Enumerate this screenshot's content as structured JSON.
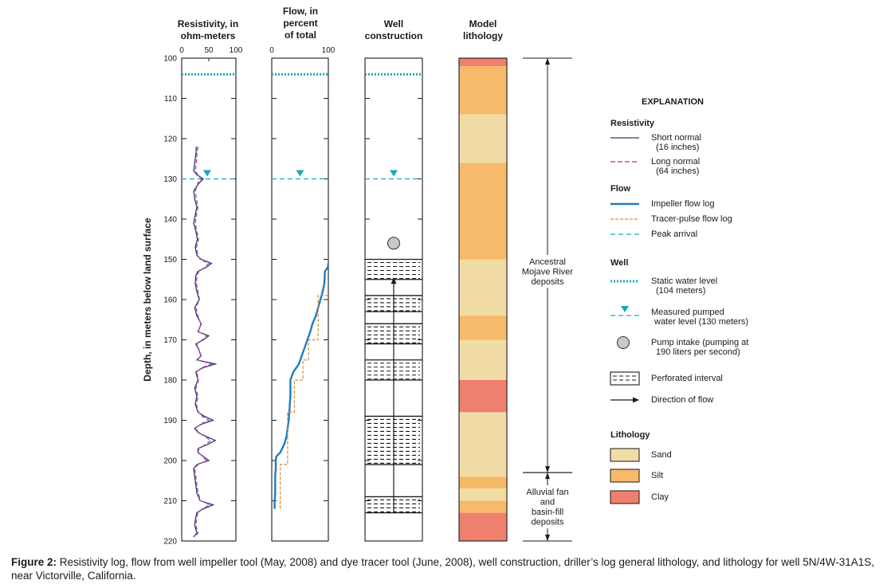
{
  "caption": {
    "label": "Figure 2:",
    "text": "Resistivity log,  flow from well impeller tool (May, 2008) and dye tracer tool (June, 2008), well construction, driller’s log general lithology, and lithology for well 5N/4W-31A1S, near Victorville, California."
  },
  "colors": {
    "short_normal": "#2d3a6e",
    "long_normal": "#b05aa8",
    "impeller": "#1f7cc0",
    "tracer": "#d98a3c",
    "peak": "#1aa6b8",
    "static": "#1aa6b8",
    "sand": "#f2dca6",
    "silt": "#f7b96a",
    "clay": "#ef7f6f"
  },
  "chart_data": {
    "type": "line",
    "ylabel": "Depth, in meters below land surface",
    "ylim": [
      100,
      220
    ],
    "yticks": [
      "100",
      "110",
      "120",
      "130",
      "140",
      "150",
      "160",
      "170",
      "180",
      "190",
      "200",
      "210",
      "220"
    ],
    "panels": [
      {
        "title": [
          "Resistivity, in",
          "ohm-meters"
        ],
        "xlim": [
          0,
          100
        ],
        "xticks": [
          "0",
          "50",
          "100"
        ]
      },
      {
        "title": [
          "Flow, in",
          "percent",
          "of total"
        ],
        "xlim": [
          0,
          100
        ],
        "xticks": [
          "0",
          "100"
        ]
      },
      {
        "title": [
          "Well",
          "construction"
        ]
      },
      {
        "title": [
          "Model",
          "lithology"
        ]
      }
    ],
    "static_water_level_m": 104,
    "pumped_water_level_m": 130,
    "pump_intake_m": 146,
    "series": [
      {
        "name": "Short normal (16 inches)",
        "panel": 0,
        "depth": [
          122,
          124,
          126,
          128,
          129,
          130,
          131,
          133,
          135,
          137,
          139,
          141,
          143,
          145,
          147,
          149,
          150,
          151,
          152,
          153,
          154,
          156,
          158,
          160,
          162,
          164,
          166,
          168,
          169,
          170,
          171,
          172,
          174,
          175,
          176,
          177,
          178,
          180,
          182,
          184,
          186,
          188,
          189,
          190,
          191,
          192,
          193,
          194,
          195,
          196,
          197,
          198,
          199,
          200,
          201,
          202,
          204,
          206,
          208,
          210,
          211,
          212,
          213,
          214,
          216,
          218,
          219
        ],
        "values": [
          27,
          26,
          24,
          22,
          28,
          40,
          32,
          22,
          24,
          28,
          25,
          22,
          26,
          29,
          25,
          28,
          36,
          55,
          45,
          30,
          26,
          25,
          28,
          32,
          24,
          28,
          36,
          30,
          50,
          40,
          26,
          30,
          36,
          28,
          62,
          38,
          26,
          30,
          24,
          28,
          25,
          30,
          42,
          58,
          36,
          24,
          30,
          45,
          62,
          48,
          30,
          30,
          40,
          50,
          28,
          22,
          24,
          26,
          28,
          34,
          58,
          40,
          28,
          26,
          24,
          28,
          22
        ]
      },
      {
        "name": "Long normal (64 inches)",
        "panel": 0,
        "depth": [
          122,
          124,
          126,
          128,
          129,
          130,
          131,
          133,
          135,
          137,
          139,
          141,
          143,
          145,
          147,
          149,
          150,
          151,
          152,
          153,
          154,
          156,
          158,
          160,
          162,
          164,
          166,
          168,
          169,
          170,
          171,
          172,
          174,
          175,
          176,
          177,
          178,
          180,
          182,
          184,
          186,
          188,
          189,
          190,
          191,
          192,
          193,
          194,
          195,
          196,
          197,
          198,
          199,
          200,
          201,
          202,
          204,
          206,
          208,
          210,
          211,
          212,
          213,
          214,
          216,
          218,
          219
        ],
        "values": [
          30,
          28,
          27,
          25,
          30,
          36,
          30,
          25,
          27,
          30,
          27,
          25,
          28,
          31,
          27,
          30,
          34,
          50,
          42,
          32,
          28,
          27,
          30,
          33,
          26,
          30,
          35,
          31,
          46,
          38,
          28,
          31,
          35,
          30,
          54,
          36,
          28,
          31,
          26,
          30,
          27,
          31,
          38,
          50,
          34,
          26,
          31,
          42,
          54,
          44,
          31,
          32,
          38,
          46,
          30,
          24,
          26,
          28,
          30,
          35,
          52,
          38,
          30,
          28,
          26,
          30,
          24
        ]
      },
      {
        "name": "Impeller flow log",
        "panel": 1,
        "depth": [
          151,
          152,
          153,
          156,
          158,
          160,
          162,
          164,
          166,
          168,
          170,
          172,
          174,
          176,
          178,
          180,
          184,
          186,
          188,
          190,
          192,
          194,
          196,
          198,
          199,
          200,
          202,
          204,
          206,
          208,
          210,
          212
        ],
        "values": [
          100,
          99,
          94,
          93,
          90,
          86,
          82,
          78,
          72,
          68,
          63,
          58,
          53,
          48,
          38,
          33,
          33,
          32,
          31,
          30,
          28,
          26,
          22,
          15,
          8,
          7,
          7,
          6,
          6,
          6,
          5,
          5
        ]
      },
      {
        "name": "Tracer-pulse flow log",
        "panel": 1,
        "points": [
          [
            159,
            100
          ],
          [
            159,
            82
          ],
          [
            170,
            82
          ],
          [
            170,
            65
          ],
          [
            175,
            65
          ],
          [
            175,
            55
          ],
          [
            180,
            55
          ],
          [
            180,
            40
          ],
          [
            188,
            40
          ],
          [
            188,
            28
          ],
          [
            201,
            28
          ],
          [
            201,
            15
          ],
          [
            212,
            15
          ]
        ]
      }
    ],
    "peak_arrivals_m": [
      130
    ],
    "perforated_intervals_m": [
      [
        150,
        155
      ],
      [
        159,
        163
      ],
      [
        166,
        171
      ],
      [
        175,
        180
      ],
      [
        189,
        201
      ],
      [
        209,
        213
      ]
    ],
    "lithology": [
      {
        "top": 100,
        "bottom": 102,
        "type": "Clay"
      },
      {
        "top": 102,
        "bottom": 114,
        "type": "Silt"
      },
      {
        "top": 114,
        "bottom": 126,
        "type": "Sand"
      },
      {
        "top": 126,
        "bottom": 150,
        "type": "Silt"
      },
      {
        "top": 150,
        "bottom": 164,
        "type": "Sand"
      },
      {
        "top": 164,
        "bottom": 170,
        "type": "Silt"
      },
      {
        "top": 170,
        "bottom": 180,
        "type": "Sand"
      },
      {
        "top": 180,
        "bottom": 188,
        "type": "Clay"
      },
      {
        "top": 188,
        "bottom": 204,
        "type": "Sand"
      },
      {
        "top": 204,
        "bottom": 207,
        "type": "Silt"
      },
      {
        "top": 207,
        "bottom": 210,
        "type": "Sand"
      },
      {
        "top": 210,
        "bottom": 213,
        "type": "Silt"
      },
      {
        "top": 213,
        "bottom": 220,
        "type": "Clay"
      }
    ],
    "units": [
      {
        "top": 100,
        "bottom": 203,
        "label": [
          "Ancestral",
          "Mojave River",
          "deposits"
        ]
      },
      {
        "top": 203,
        "bottom": 220,
        "label": [
          "Alluvial fan",
          "and",
          "basin-fill",
          "deposits"
        ]
      }
    ],
    "legend": {
      "title": "EXPLANATION",
      "groups": [
        {
          "heading": "Resistivity",
          "items": [
            {
              "key": "short_normal",
              "label": [
                "Short normal",
                "(16 inches)"
              ]
            },
            {
              "key": "long_normal",
              "label": [
                "Long normal",
                "(64 inches)"
              ]
            }
          ]
        },
        {
          "heading": "Flow",
          "items": [
            {
              "key": "impeller",
              "label": [
                "Impeller flow log"
              ]
            },
            {
              "key": "tracer",
              "label": [
                "Tracer-pulse flow log"
              ]
            },
            {
              "key": "peak",
              "label": [
                "Peak arrival"
              ]
            }
          ]
        },
        {
          "heading": "Well",
          "items": [
            {
              "key": "static",
              "label": [
                "Static water level",
                "(104 meters)"
              ]
            },
            {
              "key": "pumped",
              "label": [
                "Measured pumped",
                "water level (130 meters)"
              ]
            },
            {
              "key": "intake",
              "label": [
                "Pump intake (pumping at",
                "190 liters per second)"
              ]
            },
            {
              "key": "perf",
              "label": [
                "Perforated interval"
              ]
            },
            {
              "key": "dir",
              "label": [
                "Direction of flow"
              ]
            }
          ]
        },
        {
          "heading": "Lithology",
          "items": [
            {
              "key": "sand",
              "label": [
                "Sand"
              ]
            },
            {
              "key": "silt",
              "label": [
                "Silt"
              ]
            },
            {
              "key": "clay",
              "label": [
                "Clay"
              ]
            }
          ]
        }
      ]
    }
  }
}
